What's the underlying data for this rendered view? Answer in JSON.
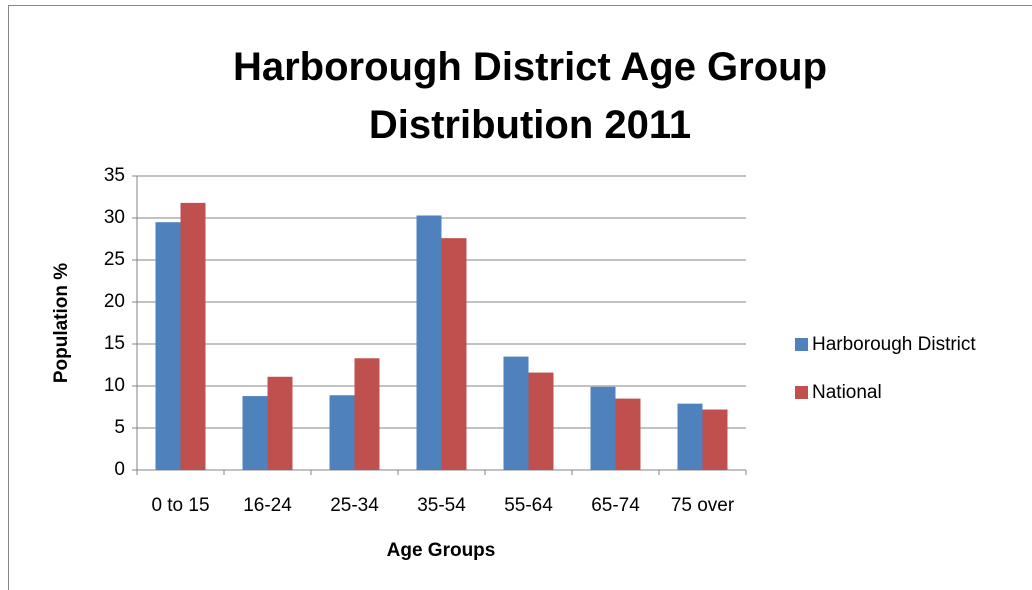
{
  "chart_data": {
    "type": "bar",
    "title": "Harborough District Age Group Distribution 2011",
    "x_label": "Age Groups",
    "y_label": "Population %",
    "categories": [
      "0 to 15",
      "16-24",
      "25-34",
      "35-54",
      "55-64",
      "65-74",
      "75 over"
    ],
    "series": [
      {
        "name": "Harborough District",
        "color": "#4f81bd",
        "values": [
          29.5,
          8.8,
          8.9,
          30.3,
          13.5,
          9.9,
          7.9
        ]
      },
      {
        "name": "National",
        "color": "#c0504d",
        "values": [
          31.8,
          11.1,
          13.3,
          27.6,
          11.6,
          8.5,
          7.2
        ]
      }
    ],
    "ylim": [
      0,
      35
    ],
    "yticks": [
      0,
      5,
      10,
      15,
      20,
      25,
      30,
      35
    ],
    "grid": true,
    "legend": "right"
  }
}
